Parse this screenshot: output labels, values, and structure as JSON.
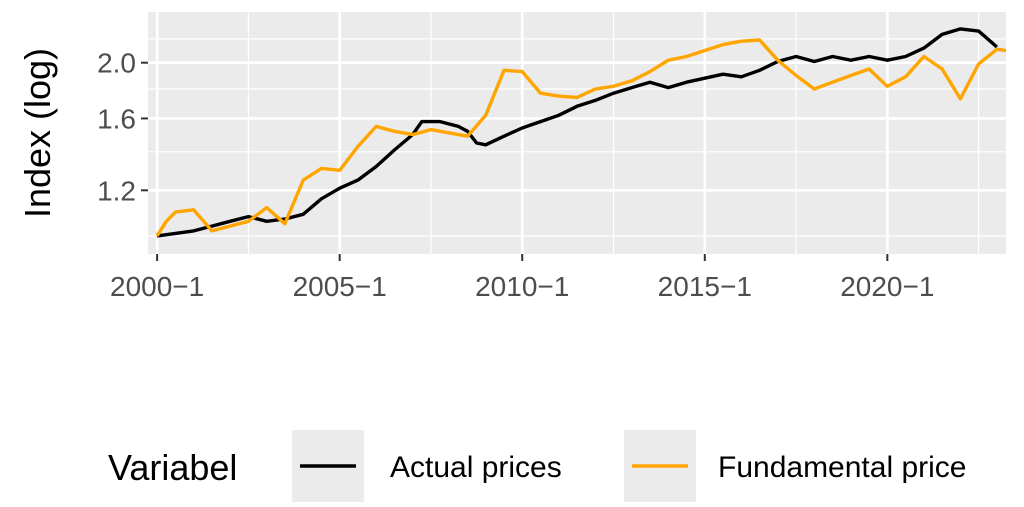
{
  "chart_data": {
    "type": "line",
    "title": "",
    "xlabel": "",
    "ylabel": "Index (log)",
    "y_scale": "log",
    "xlim": [
      "1999-10",
      "2023-04"
    ],
    "ylim": [
      0.93,
      2.45
    ],
    "x_ticks": [
      {
        "date": "2000-01",
        "label": "2000−1"
      },
      {
        "date": "2005-01",
        "label": "2005−1"
      },
      {
        "date": "2010-01",
        "label": "2010−1"
      },
      {
        "date": "2015-01",
        "label": "2015−1"
      },
      {
        "date": "2020-01",
        "label": "2020−1"
      }
    ],
    "y_ticks": [
      {
        "value": 1.2,
        "label": "1.2"
      },
      {
        "value": 1.6,
        "label": "1.6"
      },
      {
        "value": 2.0,
        "label": "2.0"
      }
    ],
    "grid": true,
    "legend": {
      "title": "Variabel",
      "position": "bottom"
    },
    "series": [
      {
        "name": "Actual prices",
        "color": "#000000",
        "points": [
          [
            "2000-01",
            1.0
          ],
          [
            "2000-07",
            1.01
          ],
          [
            "2001-01",
            1.02
          ],
          [
            "2001-07",
            1.04
          ],
          [
            "2002-01",
            1.06
          ],
          [
            "2002-07",
            1.08
          ],
          [
            "2003-01",
            1.06
          ],
          [
            "2003-07",
            1.07
          ],
          [
            "2004-01",
            1.09
          ],
          [
            "2004-07",
            1.16
          ],
          [
            "2005-01",
            1.21
          ],
          [
            "2005-07",
            1.25
          ],
          [
            "2006-01",
            1.32
          ],
          [
            "2006-07",
            1.41
          ],
          [
            "2007-01",
            1.5
          ],
          [
            "2007-04",
            1.58
          ],
          [
            "2007-10",
            1.58
          ],
          [
            "2008-04",
            1.55
          ],
          [
            "2008-07",
            1.52
          ],
          [
            "2008-10",
            1.45
          ],
          [
            "2009-01",
            1.44
          ],
          [
            "2009-07",
            1.49
          ],
          [
            "2010-01",
            1.54
          ],
          [
            "2010-07",
            1.58
          ],
          [
            "2011-01",
            1.62
          ],
          [
            "2011-07",
            1.68
          ],
          [
            "2012-01",
            1.72
          ],
          [
            "2012-07",
            1.77
          ],
          [
            "2013-01",
            1.81
          ],
          [
            "2013-07",
            1.85
          ],
          [
            "2014-01",
            1.81
          ],
          [
            "2014-07",
            1.85
          ],
          [
            "2015-01",
            1.88
          ],
          [
            "2015-07",
            1.91
          ],
          [
            "2016-01",
            1.89
          ],
          [
            "2016-07",
            1.94
          ],
          [
            "2017-01",
            2.01
          ],
          [
            "2017-07",
            2.05
          ],
          [
            "2018-01",
            2.01
          ],
          [
            "2018-07",
            2.05
          ],
          [
            "2019-01",
            2.02
          ],
          [
            "2019-07",
            2.05
          ],
          [
            "2020-01",
            2.02
          ],
          [
            "2020-07",
            2.05
          ],
          [
            "2021-01",
            2.12
          ],
          [
            "2021-07",
            2.24
          ],
          [
            "2022-01",
            2.29
          ],
          [
            "2022-07",
            2.27
          ],
          [
            "2022-10",
            2.2
          ],
          [
            "2023-01",
            2.13
          ]
        ]
      },
      {
        "name": "Fundamental price",
        "color": "#FFA500",
        "points": [
          [
            "2000-01",
            1.0
          ],
          [
            "2000-04",
            1.06
          ],
          [
            "2000-07",
            1.1
          ],
          [
            "2001-01",
            1.11
          ],
          [
            "2001-07",
            1.02
          ],
          [
            "2002-01",
            1.04
          ],
          [
            "2002-07",
            1.06
          ],
          [
            "2003-01",
            1.12
          ],
          [
            "2003-07",
            1.05
          ],
          [
            "2004-01",
            1.25
          ],
          [
            "2004-07",
            1.31
          ],
          [
            "2005-01",
            1.3
          ],
          [
            "2005-07",
            1.43
          ],
          [
            "2006-01",
            1.55
          ],
          [
            "2006-07",
            1.52
          ],
          [
            "2007-01",
            1.5
          ],
          [
            "2007-07",
            1.53
          ],
          [
            "2008-01",
            1.51
          ],
          [
            "2008-07",
            1.49
          ],
          [
            "2009-01",
            1.62
          ],
          [
            "2009-07",
            1.94
          ],
          [
            "2010-01",
            1.93
          ],
          [
            "2010-07",
            1.77
          ],
          [
            "2011-01",
            1.75
          ],
          [
            "2011-07",
            1.74
          ],
          [
            "2012-01",
            1.8
          ],
          [
            "2012-07",
            1.82
          ],
          [
            "2013-01",
            1.86
          ],
          [
            "2013-07",
            1.93
          ],
          [
            "2014-01",
            2.02
          ],
          [
            "2014-07",
            2.05
          ],
          [
            "2015-01",
            2.1
          ],
          [
            "2015-07",
            2.15
          ],
          [
            "2016-01",
            2.18
          ],
          [
            "2016-07",
            2.19
          ],
          [
            "2017-01",
            2.02
          ],
          [
            "2017-07",
            1.9
          ],
          [
            "2018-01",
            1.8
          ],
          [
            "2018-07",
            1.85
          ],
          [
            "2019-01",
            1.9
          ],
          [
            "2019-07",
            1.95
          ],
          [
            "2020-01",
            1.82
          ],
          [
            "2020-07",
            1.89
          ],
          [
            "2021-01",
            2.05
          ],
          [
            "2021-07",
            1.95
          ],
          [
            "2022-01",
            1.73
          ],
          [
            "2022-07",
            1.99
          ],
          [
            "2023-01",
            2.11
          ],
          [
            "2023-04",
            2.1
          ]
        ]
      }
    ]
  }
}
